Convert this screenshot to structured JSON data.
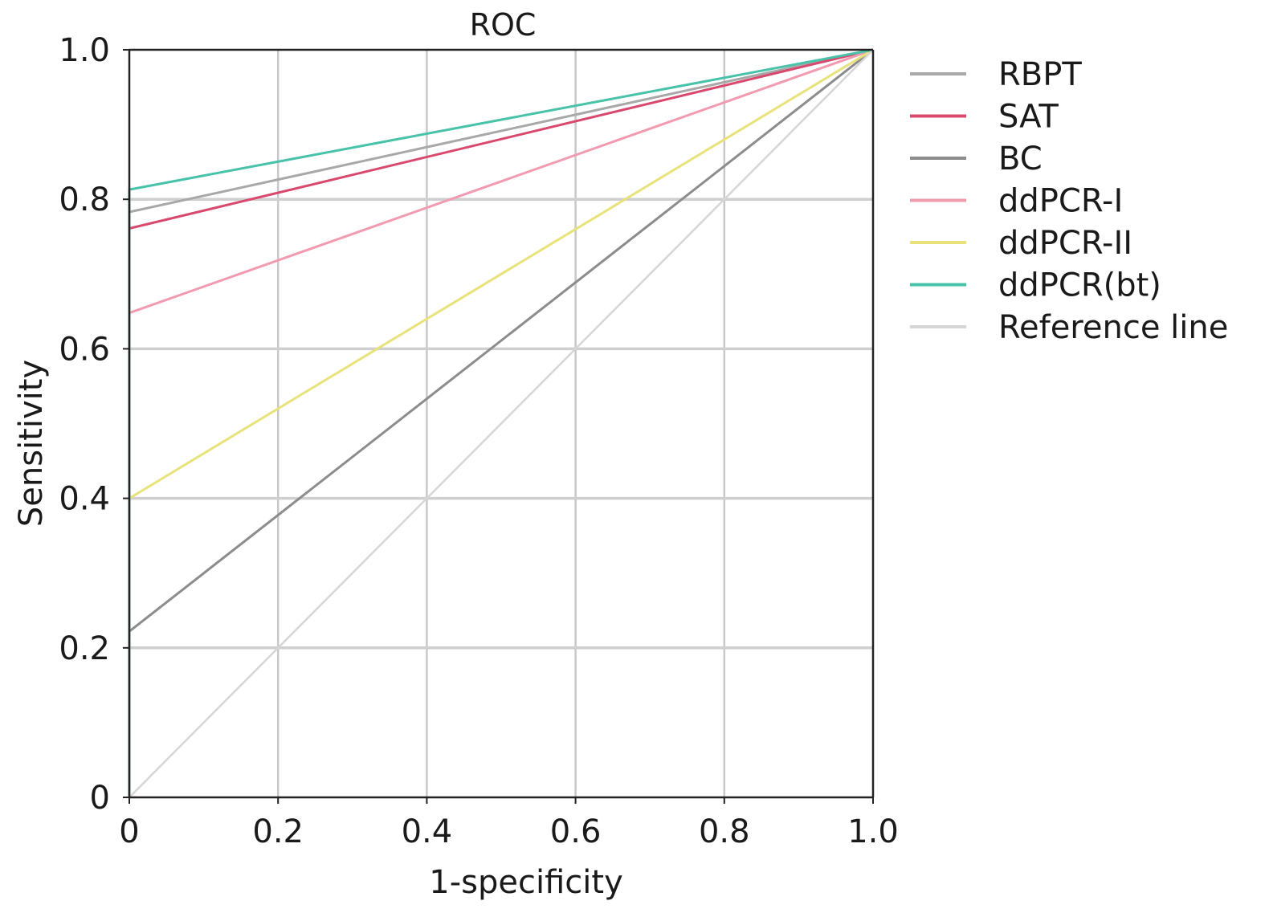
{
  "chart_data": {
    "type": "line",
    "title": "ROC",
    "xlabel": "1-specificity",
    "ylabel": "Sensitivity",
    "xlim": [
      0,
      1
    ],
    "ylim": [
      0,
      1
    ],
    "x_ticks": [
      0,
      0.2,
      0.4,
      0.6,
      0.8,
      1.0
    ],
    "y_ticks": [
      0,
      0.2,
      0.4,
      0.6,
      0.8,
      1.0
    ],
    "x_tick_labels": [
      "0",
      "0.2",
      "0.4",
      "0.6",
      "0.8",
      "1.0"
    ],
    "y_tick_labels": [
      "0",
      "0.2",
      "0.4",
      "0.6",
      "0.8",
      "1.0"
    ],
    "grid": true,
    "legend_position": "right",
    "series": [
      {
        "name": "RBPT",
        "color": "#a8a8a8",
        "points": [
          [
            0,
            0
          ],
          [
            0,
            0.783
          ],
          [
            1,
            1
          ]
        ]
      },
      {
        "name": "SAT",
        "color": "#d9486e",
        "points": [
          [
            0,
            0
          ],
          [
            0,
            0.761
          ],
          [
            1,
            1
          ]
        ]
      },
      {
        "name": "BC",
        "color": "#8c8c8c",
        "points": [
          [
            0,
            0
          ],
          [
            0,
            0.222
          ],
          [
            1,
            1
          ]
        ]
      },
      {
        "name": "ddPCR-I",
        "color": "#f29ab0",
        "points": [
          [
            0,
            0
          ],
          [
            0,
            0.648
          ],
          [
            1,
            1
          ]
        ]
      },
      {
        "name": "ddPCR-II",
        "color": "#e8e27a",
        "points": [
          [
            0,
            0
          ],
          [
            0,
            0.4
          ],
          [
            1,
            1
          ]
        ]
      },
      {
        "name": "ddPCR(bt)",
        "color": "#48c2a9",
        "points": [
          [
            0,
            0
          ],
          [
            0,
            0.813
          ],
          [
            1,
            1
          ]
        ]
      },
      {
        "name": "Reference line",
        "color": "#d6d6d6",
        "points": [
          [
            0,
            0
          ],
          [
            1,
            1
          ]
        ]
      }
    ]
  }
}
